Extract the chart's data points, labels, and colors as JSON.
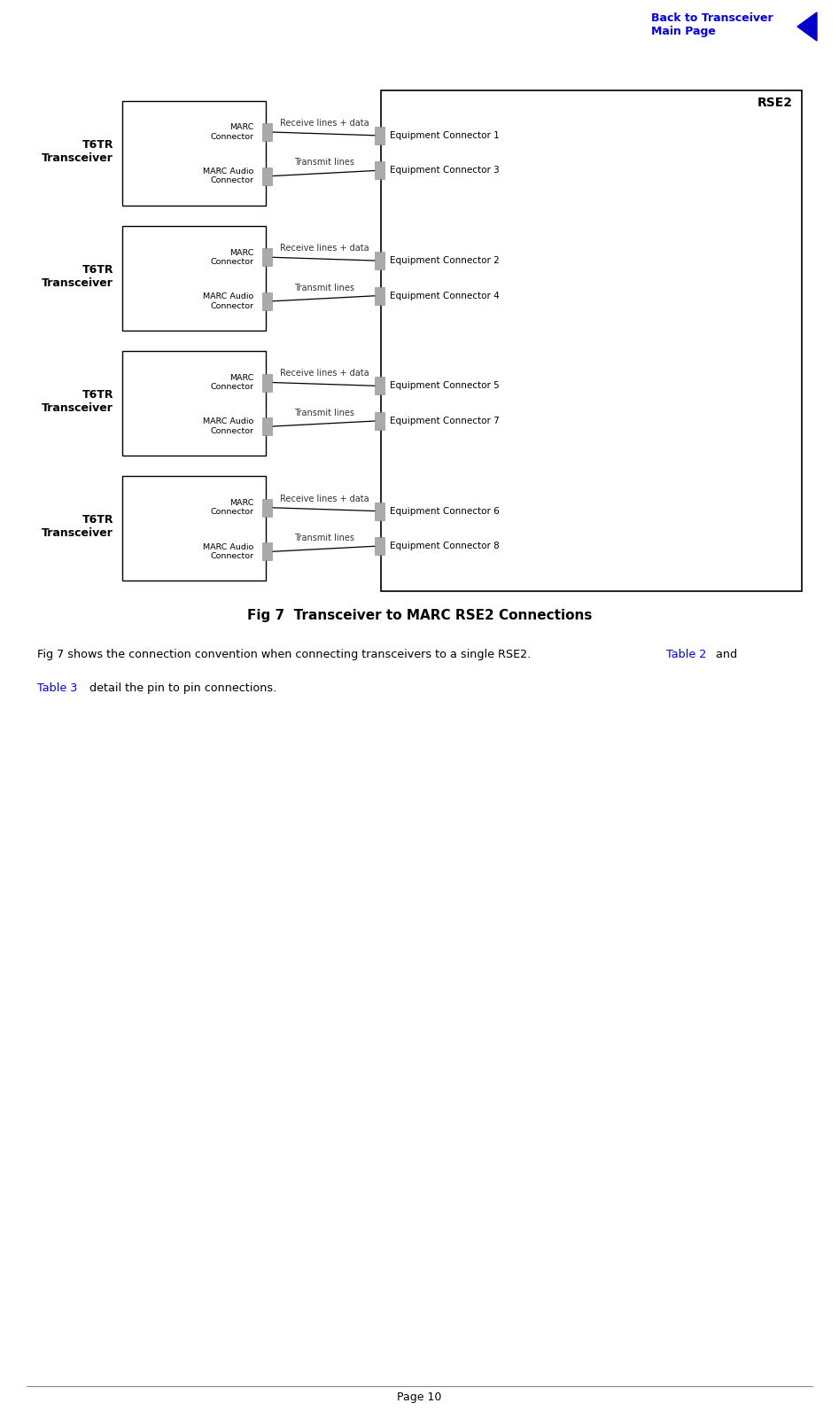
{
  "title": "Fig 7  Transceiver to MARC RSE2 Connections",
  "nav_text": "Back to Transceiver\nMain Page",
  "page_label": "Page 10",
  "rse2_label": "RSE2",
  "transceivers": [
    {
      "label": "T6TR\nTransceiver",
      "marc_conn": "MARC\nConnector",
      "audio_conn": "MARC Audio\nConnector",
      "rx_label": "Receive lines + data",
      "tx_label": "Transmit lines",
      "eq_conn1": "Equipment Connector 1",
      "eq_conn2": "Equipment Connector 3"
    },
    {
      "label": "T6TR\nTransceiver",
      "marc_conn": "MARC\nConnector",
      "audio_conn": "MARC Audio\nConnector",
      "rx_label": "Receive lines + data",
      "tx_label": "Transmit lines",
      "eq_conn1": "Equipment Connector 2",
      "eq_conn2": "Equipment Connector 4"
    },
    {
      "label": "T6TR\nTransceiver",
      "marc_conn": "MARC\nConnector",
      "audio_conn": "MARC Audio\nConnector",
      "rx_label": "Receive lines + data",
      "tx_label": "Transmit lines",
      "eq_conn1": "Equipment Connector 5",
      "eq_conn2": "Equipment Connector 7"
    },
    {
      "label": "T6TR\nTransceiver",
      "marc_conn": "MARC\nConnector",
      "audio_conn": "MARC Audio\nConnector",
      "rx_label": "Receive lines + data",
      "tx_label": "Transmit lines",
      "eq_conn1": "Equipment Connector 6",
      "eq_conn2": "Equipment Connector 8"
    }
  ],
  "bg_color": "#ffffff",
  "box_edge_color": "#000000",
  "connector_fill": "#aaaaaa",
  "line_color": "#000000",
  "nav_color": "#0000ee",
  "arrow_color": "#0000cc",
  "text_color": "#000000",
  "label_text_color": "#333333",
  "caption_prefix": "Fig 7 shows the connection convention when connecting transceivers to a single RSE2. ",
  "caption_table2": "Table 2",
  "caption_and": " and",
  "caption_table3": "Table 3",
  "caption_suffix": " detail the pin to pin connections."
}
